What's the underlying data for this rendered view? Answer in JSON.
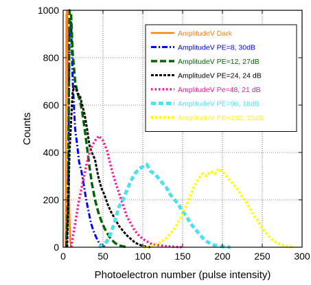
{
  "chart_data": {
    "type": "line",
    "title": "",
    "xlabel": "Photoelectron number (pulse intensity)",
    "ylabel": "Counts",
    "xlim": [
      0,
      300
    ],
    "ylim": [
      0,
      1000
    ],
    "xticks": [
      0,
      50,
      100,
      150,
      200,
      250,
      300
    ],
    "yticks": [
      0,
      200,
      400,
      600,
      800,
      1000
    ],
    "grid": "dotted",
    "legend": "top-right",
    "series": [
      {
        "name": "AmplitudeV Dark",
        "color": "#ff7f0e",
        "style": "solid",
        "x": [
          3,
          4,
          5,
          6,
          7,
          8,
          9,
          10,
          12
        ],
        "y": [
          0,
          980,
          1000,
          850,
          400,
          120,
          20,
          5,
          0
        ]
      },
      {
        "name": "AmplitudeV PE=8, 30dB",
        "color": "#0000ee",
        "style": "dashdot",
        "x": [
          4,
          6,
          8,
          10,
          12,
          15,
          18,
          20,
          23,
          26,
          29,
          32,
          35,
          38,
          41,
          44,
          47,
          50,
          55
        ],
        "y": [
          0,
          150,
          900,
          950,
          700,
          500,
          420,
          360,
          320,
          260,
          200,
          150,
          100,
          70,
          45,
          25,
          12,
          5,
          0
        ]
      },
      {
        "name": "AmplitudeV PE=12, 27dB",
        "color": "#006400",
        "style": "dashed",
        "x": [
          4,
          6,
          8,
          10,
          12,
          15,
          18,
          21,
          24,
          27,
          30,
          33,
          36,
          40,
          44,
          48,
          52,
          56,
          60,
          65,
          70,
          80
        ],
        "y": [
          0,
          200,
          1000,
          980,
          820,
          700,
          650,
          620,
          570,
          500,
          420,
          340,
          270,
          200,
          150,
          110,
          80,
          55,
          35,
          18,
          8,
          0
        ]
      },
      {
        "name": "AmplitudeV PE=24, 24 dB",
        "color": "#000000",
        "style": "short-dash",
        "x": [
          5,
          8,
          12,
          15,
          18,
          21,
          24,
          27,
          30,
          33,
          36,
          40,
          44,
          48,
          52,
          56,
          60,
          65,
          70,
          75,
          80,
          85,
          90,
          95,
          100,
          110
        ],
        "y": [
          0,
          400,
          660,
          680,
          650,
          640,
          600,
          560,
          500,
          430,
          400,
          370,
          300,
          250,
          220,
          180,
          150,
          120,
          90,
          70,
          50,
          35,
          20,
          12,
          5,
          0
        ]
      },
      {
        "name": "AmplitudeV Pe=48, 21 dB",
        "color": "#ff1493",
        "style": "dotted",
        "x": [
          10,
          15,
          20,
          25,
          30,
          35,
          40,
          45,
          50,
          55,
          60,
          65,
          70,
          75,
          80,
          85,
          90,
          95,
          100,
          110,
          120,
          130,
          140,
          150
        ],
        "y": [
          0,
          100,
          200,
          280,
          360,
          420,
          450,
          470,
          450,
          410,
          340,
          280,
          230,
          180,
          130,
          100,
          70,
          50,
          35,
          15,
          8,
          4,
          2,
          0
        ]
      },
      {
        "name": "AmplitudeV PE=96, 18dB",
        "color": "#4fe0f0",
        "style": "thick-dash",
        "x": [
          45,
          50,
          55,
          60,
          65,
          70,
          75,
          80,
          85,
          90,
          95,
          100,
          105,
          110,
          115,
          120,
          125,
          130,
          135,
          140,
          145,
          150,
          155,
          160,
          165,
          170,
          175,
          180,
          185,
          190,
          200,
          210
        ],
        "y": [
          0,
          10,
          25,
          60,
          110,
          170,
          200,
          240,
          280,
          310,
          330,
          340,
          350,
          320,
          310,
          290,
          270,
          250,
          220,
          200,
          180,
          150,
          130,
          100,
          80,
          60,
          40,
          25,
          15,
          8,
          3,
          0
        ]
      },
      {
        "name": "AmplitudeV PE=192, 15dB",
        "color": "#ffff00",
        "style": "thick-dot",
        "x": [
          100,
          110,
          120,
          130,
          140,
          150,
          155,
          160,
          165,
          170,
          175,
          180,
          185,
          190,
          195,
          200,
          205,
          210,
          215,
          220,
          225,
          230,
          235,
          240,
          245,
          250,
          255,
          260,
          265,
          270,
          280,
          290
        ],
        "y": [
          0,
          5,
          15,
          40,
          80,
          140,
          180,
          220,
          260,
          290,
          310,
          300,
          320,
          310,
          330,
          320,
          300,
          280,
          260,
          240,
          210,
          190,
          160,
          130,
          110,
          80,
          60,
          40,
          25,
          15,
          5,
          0
        ]
      }
    ]
  }
}
